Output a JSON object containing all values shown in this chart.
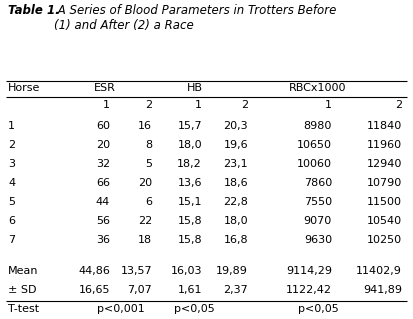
{
  "title_bold": "Table 1.",
  "title_italic": "  A Series of Blood Parameters in Trotters Before\n(1) and After (2) a Race",
  "data_rows": [
    [
      "1",
      "60",
      "16",
      "15,7",
      "20,3",
      "8980",
      "11840"
    ],
    [
      "2",
      "20",
      "8",
      "18,0",
      "19,6",
      "10650",
      "11960"
    ],
    [
      "3",
      "32",
      "5",
      "18,2",
      "23,1",
      "10060",
      "12940"
    ],
    [
      "4",
      "66",
      "20",
      "13,6",
      "18,6",
      "7860",
      "10790"
    ],
    [
      "5",
      "44",
      "6",
      "15,1",
      "22,8",
      "7550",
      "11500"
    ],
    [
      "6",
      "56",
      "22",
      "15,8",
      "18,0",
      "9070",
      "10540"
    ],
    [
      "7",
      "36",
      "18",
      "15,8",
      "16,8",
      "9630",
      "10250"
    ]
  ],
  "stat_rows": [
    [
      "Mean",
      "44,86",
      "13,57",
      "16,03",
      "19,89",
      "9114,29",
      "11402,9"
    ],
    [
      "± SD",
      "16,65",
      "7,07",
      "1,61",
      "2,37",
      "1122,42",
      "941,89"
    ],
    [
      "T-test",
      "p<0,001",
      "p<0,05",
      "p<0,05"
    ]
  ],
  "bg_color": "#ffffff",
  "text_color": "#000000",
  "font_size": 8.0,
  "title_font_size": 8.5
}
